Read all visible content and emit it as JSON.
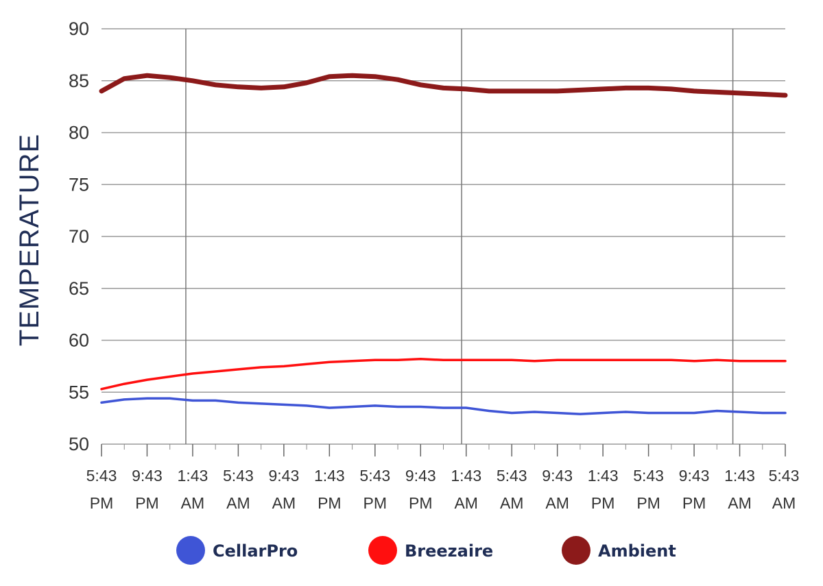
{
  "chart_data": {
    "type": "line",
    "title": "",
    "xlabel": "",
    "ylabel": "TEMPERATURE",
    "ylim": [
      50,
      90
    ],
    "yticks": [
      50,
      55,
      60,
      65,
      70,
      75,
      80,
      85,
      90
    ],
    "grid": true,
    "legend_position": "bottom",
    "x_ticks": [
      {
        "time": "5:43",
        "period": "PM"
      },
      {
        "time": "9:43",
        "period": "PM"
      },
      {
        "time": "1:43",
        "period": "AM"
      },
      {
        "time": "5:43",
        "period": "AM"
      },
      {
        "time": "9:43",
        "period": "AM"
      },
      {
        "time": "1:43",
        "period": "PM"
      },
      {
        "time": "5:43",
        "period": "PM"
      },
      {
        "time": "9:43",
        "period": "PM"
      },
      {
        "time": "1:43",
        "period": "AM"
      },
      {
        "time": "5:43",
        "period": "AM"
      },
      {
        "time": "9:43",
        "period": "AM"
      },
      {
        "time": "1:43",
        "period": "PM"
      },
      {
        "time": "5:43",
        "period": "PM"
      },
      {
        "time": "9:43",
        "period": "PM"
      },
      {
        "time": "1:43",
        "period": "AM"
      },
      {
        "time": "5:43",
        "period": "AM"
      }
    ],
    "x": [
      0,
      0.5,
      1,
      1.5,
      2,
      2.5,
      3,
      3.5,
      4,
      4.5,
      5,
      5.5,
      6,
      6.5,
      7,
      7.5,
      8,
      8.5,
      9,
      9.5,
      10,
      10.5,
      11,
      11.5,
      12,
      12.5,
      13,
      13.5,
      14,
      14.5,
      15
    ],
    "series": [
      {
        "name": "CellarPro",
        "color": "#3f55d6",
        "values": [
          54.0,
          54.3,
          54.4,
          54.4,
          54.2,
          54.2,
          54.0,
          53.9,
          53.8,
          53.7,
          53.5,
          53.6,
          53.7,
          53.6,
          53.6,
          53.5,
          53.5,
          53.2,
          53.0,
          53.1,
          53.0,
          52.9,
          53.0,
          53.1,
          53.0,
          53.0,
          53.0,
          53.2,
          53.1,
          53.0,
          53.0
        ]
      },
      {
        "name": "Breezaire",
        "color": "#ff0f0f",
        "values": [
          55.3,
          55.8,
          56.2,
          56.5,
          56.8,
          57.0,
          57.2,
          57.4,
          57.5,
          57.7,
          57.9,
          58.0,
          58.1,
          58.1,
          58.2,
          58.1,
          58.1,
          58.1,
          58.1,
          58.0,
          58.1,
          58.1,
          58.1,
          58.1,
          58.1,
          58.1,
          58.0,
          58.1,
          58.0,
          58.0,
          58.0
        ]
      },
      {
        "name": "Ambient",
        "color": "#8c1a1a",
        "values": [
          84.0,
          85.2,
          85.5,
          85.3,
          85.0,
          84.6,
          84.4,
          84.3,
          84.4,
          84.8,
          85.4,
          85.5,
          85.4,
          85.1,
          84.6,
          84.3,
          84.2,
          84.0,
          84.0,
          84.0,
          84.0,
          84.1,
          84.2,
          84.3,
          84.3,
          84.2,
          84.0,
          83.9,
          83.8,
          83.7,
          83.6
        ]
      }
    ]
  }
}
